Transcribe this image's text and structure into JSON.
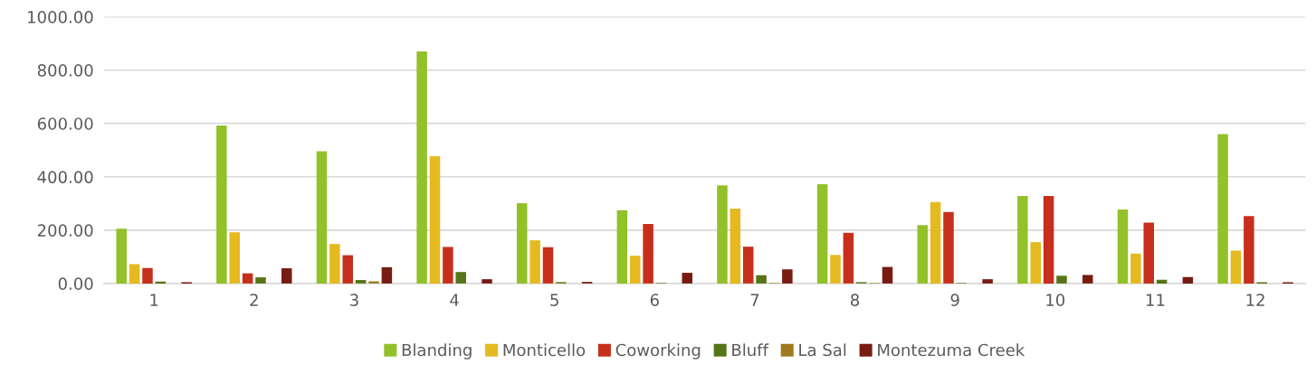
{
  "chart_data": {
    "type": "bar",
    "categories": [
      "1",
      "2",
      "3",
      "4",
      "5",
      "6",
      "7",
      "8",
      "9",
      "10",
      "11",
      "12"
    ],
    "series": [
      {
        "name": "Blanding",
        "color": "#92c12a",
        "values": [
          205,
          592,
          496,
          870,
          301,
          275,
          368,
          372,
          219,
          328,
          277,
          560
        ]
      },
      {
        "name": "Monticello",
        "color": "#e5b920",
        "values": [
          72,
          192,
          148,
          477,
          162,
          104,
          281,
          107,
          305,
          155,
          112,
          123
        ]
      },
      {
        "name": "Coworking",
        "color": "#c62f1b",
        "values": [
          58,
          38,
          106,
          137,
          136,
          223,
          138,
          190,
          268,
          328,
          228,
          253
        ]
      },
      {
        "name": "Bluff",
        "color": "#567518",
        "values": [
          7,
          23,
          13,
          43,
          5,
          2,
          31,
          5,
          2,
          29,
          14,
          5
        ]
      },
      {
        "name": "La Sal",
        "color": "#9c7c1f",
        "values": [
          0,
          0,
          8,
          0,
          0,
          0,
          2,
          2,
          0,
          0,
          0,
          0
        ]
      },
      {
        "name": "Montezuma Creek",
        "color": "#781b12",
        "values": [
          5,
          57,
          61,
          16,
          6,
          40,
          53,
          62,
          16,
          32,
          24,
          5
        ]
      }
    ],
    "ylim": [
      0,
      1000
    ],
    "yticks": [
      {
        "value": 0,
        "label": "0.00"
      },
      {
        "value": 200,
        "label": "200.00"
      },
      {
        "value": 400,
        "label": "400.00"
      },
      {
        "value": 600,
        "label": "600.00"
      },
      {
        "value": 800,
        "label": "800.00"
      },
      {
        "value": 1000,
        "label": "1000.00"
      }
    ],
    "grid": "y",
    "legend": "bottom"
  }
}
